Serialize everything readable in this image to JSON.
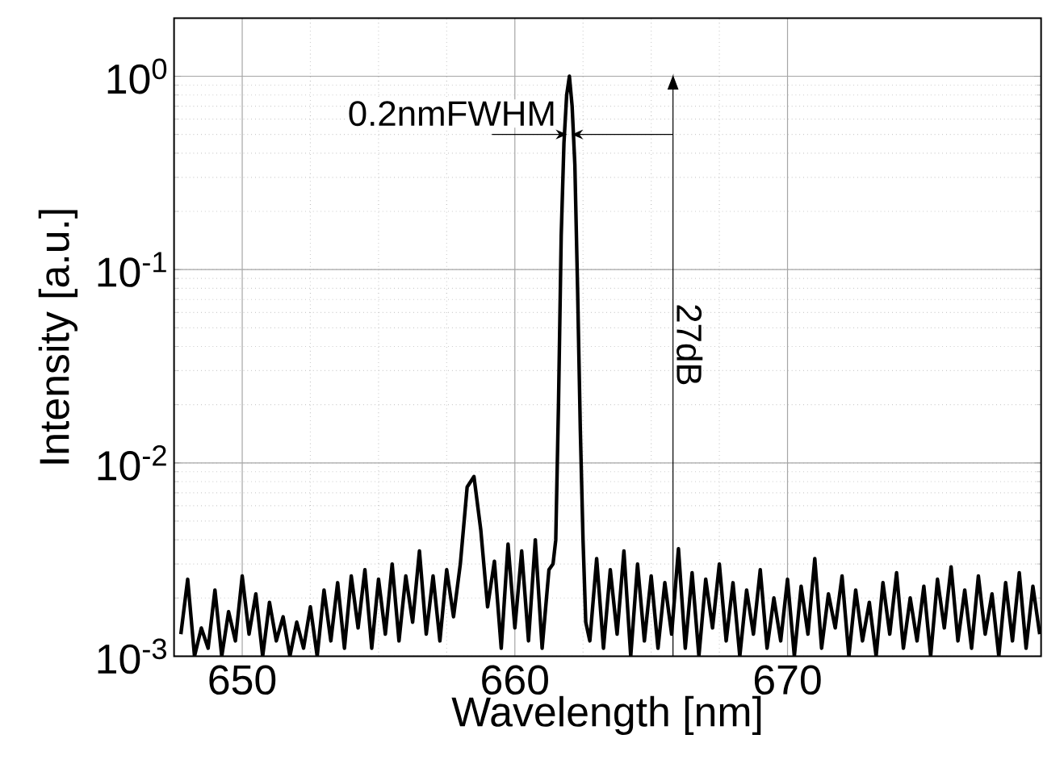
{
  "chart_data": {
    "type": "line",
    "xlabel": "Wavelength [nm]",
    "ylabel": "Intensity [a.u.]",
    "log": "y",
    "grid": true,
    "line_style": "solid",
    "xlim": [
      647.5,
      679.3
    ],
    "ylim": [
      0.001,
      2
    ],
    "xticks": [
      650,
      660,
      670
    ],
    "yticks": [
      {
        "value": 0.001,
        "label": "10$^{-3}$"
      },
      {
        "value": 0.01,
        "label": "10$^{-2}$"
      },
      {
        "value": 0.1,
        "label": "10$^{-1}$"
      },
      {
        "value": 1,
        "label": "10$^{0}$"
      }
    ],
    "annotations": [
      {
        "text": "0.2nmFWHM",
        "x": 662,
        "y": 0.5
      }
    ],
    "ref_lines": [
      {
        "axis": "x",
        "value": 665.8,
        "label": "27dB"
      }
    ],
    "series": [
      {
        "color": "#000000",
        "x": [
          647.75,
          648.0,
          648.25,
          648.5,
          648.75,
          649.0,
          649.25,
          649.5,
          649.75,
          650.0,
          650.25,
          650.5,
          650.75,
          651.0,
          651.25,
          651.5,
          651.75,
          652.0,
          652.25,
          652.5,
          652.75,
          653.0,
          653.25,
          653.5,
          653.75,
          654.0,
          654.25,
          654.5,
          654.75,
          655.0,
          655.25,
          655.5,
          655.75,
          656.0,
          656.25,
          656.5,
          656.75,
          657.0,
          657.25,
          657.5,
          657.75,
          658.0,
          658.25,
          658.5,
          658.75,
          659.0,
          659.25,
          659.5,
          659.75,
          660.0,
          660.25,
          660.5,
          660.75,
          661.0,
          661.25,
          661.4,
          661.5,
          661.6,
          661.7,
          661.8,
          661.9,
          662.0,
          662.1,
          662.2,
          662.3,
          662.4,
          662.5,
          662.6,
          662.75,
          663.0,
          663.25,
          663.5,
          663.75,
          664.0,
          664.25,
          664.5,
          664.75,
          665.0,
          665.25,
          665.5,
          665.75,
          666.0,
          666.25,
          666.5,
          666.75,
          667.0,
          667.25,
          667.5,
          667.75,
          668.0,
          668.25,
          668.5,
          668.75,
          669.0,
          669.25,
          669.5,
          669.75,
          670.0,
          670.25,
          670.5,
          670.75,
          671.0,
          671.25,
          671.5,
          671.75,
          672.0,
          672.25,
          672.5,
          672.75,
          673.0,
          673.25,
          673.5,
          673.75,
          674.0,
          674.25,
          674.5,
          674.75,
          675.0,
          675.25,
          675.5,
          675.75,
          676.0,
          676.25,
          676.5,
          676.75,
          677.0,
          677.25,
          677.5,
          677.75,
          678.0,
          678.25,
          678.5,
          678.75,
          679.0,
          679.25
        ],
        "values": [
          0.0013,
          0.0025,
          0.001,
          0.0014,
          0.0011,
          0.0022,
          0.001,
          0.0017,
          0.0012,
          0.0026,
          0.0013,
          0.0021,
          0.001,
          0.0019,
          0.0012,
          0.0016,
          0.001,
          0.0015,
          0.0011,
          0.0018,
          0.001,
          0.0022,
          0.0012,
          0.0024,
          0.0011,
          0.0026,
          0.0014,
          0.0028,
          0.0011,
          0.0025,
          0.0013,
          0.003,
          0.0012,
          0.0026,
          0.0015,
          0.0035,
          0.0013,
          0.0026,
          0.0012,
          0.0028,
          0.0016,
          0.003,
          0.0075,
          0.0085,
          0.0045,
          0.0018,
          0.0031,
          0.0011,
          0.0038,
          0.0014,
          0.0035,
          0.0012,
          0.004,
          0.0011,
          0.0028,
          0.003,
          0.004,
          0.02,
          0.15,
          0.45,
          0.8,
          1.0,
          0.7,
          0.35,
          0.08,
          0.015,
          0.004,
          0.0015,
          0.0012,
          0.0032,
          0.0011,
          0.0028,
          0.0013,
          0.0035,
          0.001,
          0.003,
          0.0012,
          0.0026,
          0.0011,
          0.0024,
          0.0013,
          0.0036,
          0.0011,
          0.0027,
          0.001,
          0.0025,
          0.0014,
          0.003,
          0.0012,
          0.0024,
          0.001,
          0.0022,
          0.0013,
          0.0028,
          0.0011,
          0.002,
          0.0012,
          0.0025,
          0.001,
          0.0023,
          0.0013,
          0.0032,
          0.0011,
          0.0021,
          0.0014,
          0.0026,
          0.001,
          0.0022,
          0.0012,
          0.0019,
          0.001,
          0.0024,
          0.0013,
          0.0027,
          0.0011,
          0.002,
          0.0012,
          0.0023,
          0.001,
          0.0025,
          0.0014,
          0.0029,
          0.0012,
          0.0022,
          0.0011,
          0.0026,
          0.0013,
          0.0021,
          0.001,
          0.0024,
          0.0012,
          0.0027,
          0.0011,
          0.0023,
          0.0013
        ]
      }
    ]
  }
}
